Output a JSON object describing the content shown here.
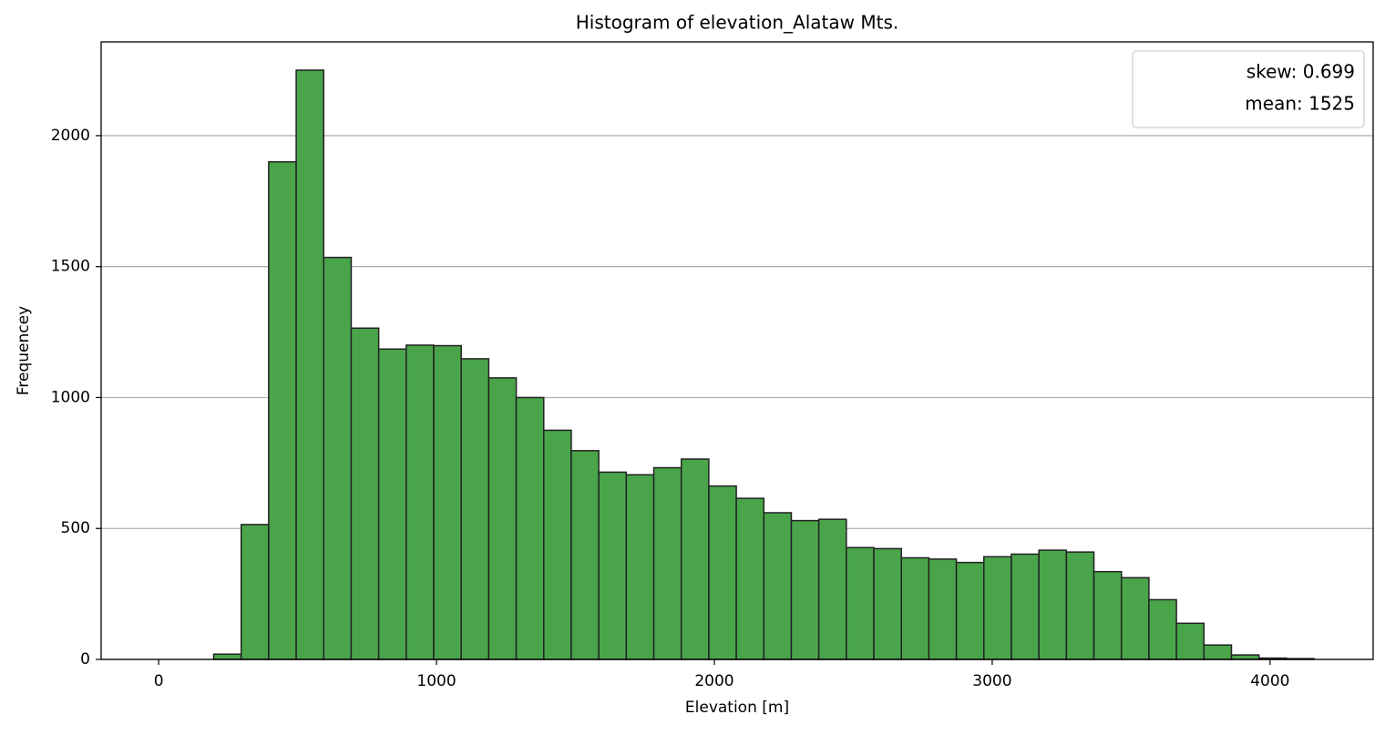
{
  "chart_data": {
    "type": "histogram",
    "title": "Histogram of elevation_Alataw Mts.",
    "x_label": "Elevation [m]",
    "y_label": "Frequencey",
    "bins": [
      0,
      99,
      198,
      297,
      396,
      495,
      594,
      693,
      792,
      891,
      990,
      1089,
      1188,
      1287,
      1386,
      1485,
      1584,
      1683,
      1782,
      1881,
      1980,
      2079,
      2178,
      2277,
      2376,
      2475,
      2574,
      2673,
      2772,
      2871,
      2970,
      3069,
      3168,
      3267,
      3366,
      3465,
      3564,
      3663,
      3762,
      3861,
      3960,
      4059,
      4158
    ],
    "values": [
      0,
      0,
      20,
      515,
      1900,
      2250,
      1535,
      1265,
      1185,
      1200,
      1198,
      1148,
      1075,
      1000,
      875,
      797,
      715,
      705,
      732,
      765,
      662,
      615,
      560,
      530,
      535,
      427,
      423,
      388,
      383,
      370,
      392,
      402,
      417,
      410,
      335,
      312,
      228,
      138,
      55,
      17,
      5,
      3
    ],
    "color": "#4aa54a",
    "edge_color": "#222222",
    "xlim": [
      -207,
      4371
    ],
    "ylim": [
      0,
      2358
    ],
    "xticks": [
      0,
      1000,
      2000,
      3000,
      4000
    ],
    "yticks": [
      0,
      500,
      1000,
      1500,
      2000
    ],
    "grid": "y",
    "legend_position": "upper right",
    "legend_text": [
      "skew: 0.699",
      "mean: 1525"
    ]
  }
}
